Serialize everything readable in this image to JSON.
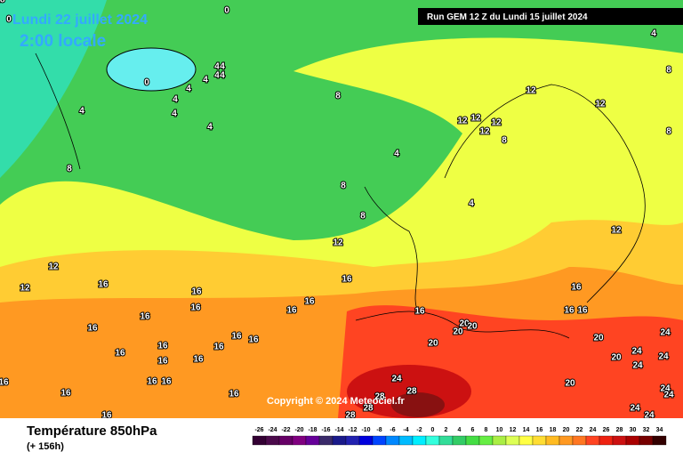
{
  "header": {
    "date": "Lundi 22 juillet 2024",
    "time": "2:00 locale",
    "run": "Run GEM 12 Z du Lundi 15 juillet 2024"
  },
  "copyright": "Copyright © 2024 Meteociel.fr",
  "footer": {
    "title": "Température 850hPa",
    "subtitle": "(+ 156h)"
  },
  "scale": {
    "values": [
      -26,
      -24,
      -22,
      -20,
      -18,
      -16,
      -14,
      -12,
      -10,
      -8,
      -6,
      -4,
      -2,
      0,
      2,
      4,
      6,
      8,
      10,
      12,
      14,
      16,
      18,
      20,
      22,
      24,
      26,
      28,
      30,
      32,
      34
    ],
    "colors": [
      "#330033",
      "#4b0a4b",
      "#660066",
      "#800080",
      "#660099",
      "#3a2a6a",
      "#1a1a8a",
      "#2222b0",
      "#0000dd",
      "#0044ff",
      "#0088ff",
      "#00bbff",
      "#00eeff",
      "#33ffdd",
      "#33dd99",
      "#33cc66",
      "#44dd44",
      "#66ee44",
      "#aaee44",
      "#ddff55",
      "#ffff44",
      "#ffdd33",
      "#ffbb22",
      "#ff9922",
      "#ff7722",
      "#ff4422",
      "#ee2211",
      "#cc1111",
      "#aa0000",
      "#770000",
      "#330000"
    ]
  },
  "contour_labels": [
    0,
    0,
    0,
    4,
    4,
    4,
    4,
    4,
    4,
    4,
    4,
    4,
    4,
    4,
    4,
    4,
    8,
    8,
    8,
    8,
    8,
    8,
    8,
    12,
    12,
    12,
    12,
    12,
    12,
    12,
    12,
    12,
    12,
    16,
    16,
    16,
    16,
    16,
    16,
    16,
    16,
    16,
    16,
    16,
    16,
    16,
    16,
    16,
    16,
    16,
    16,
    16,
    16,
    16,
    16,
    16,
    16,
    16,
    20,
    20,
    20,
    20,
    20,
    20,
    20,
    24,
    24,
    24,
    24,
    24,
    24,
    24,
    24,
    24,
    28,
    28,
    28,
    28,
    28
  ]
}
